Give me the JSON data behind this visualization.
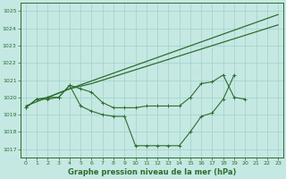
{
  "background_color": "#c5e8e3",
  "grid_color": "#a8d4ce",
  "line_color": "#2d6e2d",
  "title": "Graphe pression niveau de la mer (hPa)",
  "ylim": [
    1016.5,
    1025.5
  ],
  "xlim": [
    -0.5,
    23.5
  ],
  "yticks": [
    1017,
    1018,
    1019,
    1020,
    1021,
    1022,
    1023,
    1024,
    1025
  ],
  "xticks": [
    0,
    1,
    2,
    3,
    4,
    5,
    6,
    7,
    8,
    9,
    10,
    11,
    12,
    13,
    14,
    15,
    16,
    17,
    18,
    19,
    20,
    21,
    22,
    23
  ],
  "series": [
    {
      "x": [
        0,
        2,
        4,
        23
      ],
      "y": [
        1019.5,
        1020.0,
        1020.5,
        1024.8
      ],
      "marker": false
    },
    {
      "x": [
        2,
        4,
        6,
        23
      ],
      "y": [
        1020.0,
        1020.5,
        1020.8,
        1024.2
      ],
      "marker": false
    },
    {
      "x": [
        0,
        1,
        2,
        3,
        4,
        5,
        6,
        7,
        8,
        9,
        10,
        11,
        12,
        13,
        14,
        15,
        16,
        17,
        18,
        19,
        20
      ],
      "y": [
        1019.4,
        1019.9,
        1020.0,
        1020.0,
        1020.7,
        1020.5,
        1020.3,
        1019.7,
        1019.4,
        1019.4,
        1019.4,
        1019.5,
        1019.5,
        1019.5,
        1019.5,
        1020.0,
        1020.8,
        1020.9,
        1021.3,
        1020.0,
        1019.9
      ],
      "marker": true
    },
    {
      "x": [
        0,
        1,
        2,
        3,
        4,
        5,
        6,
        7,
        8,
        9,
        10,
        11,
        12,
        13,
        14,
        15,
        16,
        17,
        18,
        19
      ],
      "y": [
        1019.4,
        1019.9,
        1019.9,
        1020.0,
        1020.7,
        1019.5,
        1019.2,
        1019.0,
        1018.9,
        1018.9,
        1017.2,
        1017.2,
        1017.2,
        1017.2,
        1017.2,
        1018.0,
        1018.9,
        1019.1,
        1019.9,
        1021.3
      ],
      "marker": true
    }
  ]
}
